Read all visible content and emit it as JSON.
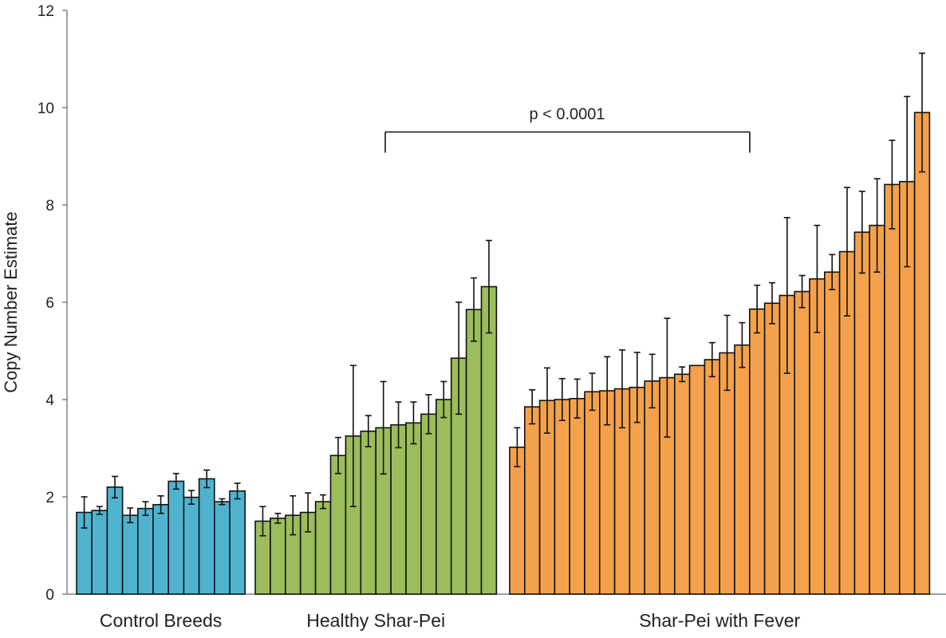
{
  "chart_data": {
    "type": "bar",
    "title": "",
    "xlabel": "",
    "ylabel": "Copy Number Estimate",
    "ylim": [
      0,
      12
    ],
    "yticks": [
      "0",
      "2",
      "4",
      "6",
      "8",
      "10",
      "12"
    ],
    "grid": false,
    "legend": "none",
    "groups": [
      {
        "name": "Control Breeds",
        "color": "#4fb3cf",
        "values": [
          1.68,
          1.72,
          2.2,
          1.62,
          1.76,
          1.84,
          2.32,
          1.99,
          2.37,
          1.9,
          2.12
        ],
        "errors": [
          0.32,
          0.08,
          0.22,
          0.15,
          0.14,
          0.18,
          0.16,
          0.14,
          0.18,
          0.06,
          0.16
        ]
      },
      {
        "name": "Healthy Shar-Pei",
        "color": "#9bbd5c",
        "values": [
          1.5,
          1.56,
          1.62,
          1.68,
          1.9,
          2.85,
          3.25,
          3.35,
          3.42,
          3.48,
          3.52,
          3.7,
          4.0,
          4.85,
          5.85,
          6.32
        ],
        "errors": [
          0.3,
          0.1,
          0.4,
          0.4,
          0.14,
          0.37,
          1.45,
          0.32,
          0.95,
          0.47,
          0.43,
          0.4,
          0.37,
          1.15,
          0.65,
          0.95
        ]
      },
      {
        "name": "Shar-Pei with Fever",
        "color": "#f5a14c",
        "values": [
          3.02,
          3.85,
          3.98,
          4.0,
          4.02,
          4.16,
          4.18,
          4.22,
          4.25,
          4.38,
          4.45,
          4.52,
          4.7,
          4.82,
          4.96,
          5.12,
          5.86,
          5.98,
          6.14,
          6.22,
          6.48,
          6.62,
          7.04,
          7.44,
          7.58,
          8.42,
          8.48,
          9.9
        ],
        "errors": [
          0.4,
          0.35,
          0.67,
          0.43,
          0.4,
          0.38,
          0.7,
          0.8,
          0.72,
          0.55,
          1.22,
          0.15,
          0.0,
          0.35,
          0.77,
          0.46,
          0.49,
          0.42,
          1.6,
          0.33,
          1.1,
          0.36,
          1.32,
          0.84,
          0.96,
          0.91,
          1.75,
          1.22
        ]
      }
    ],
    "annotation": {
      "text": "p < 0.0001",
      "from_group": "Healthy Shar-Pei",
      "to_group": "Shar-Pei with Fever",
      "y": 9.5
    }
  }
}
